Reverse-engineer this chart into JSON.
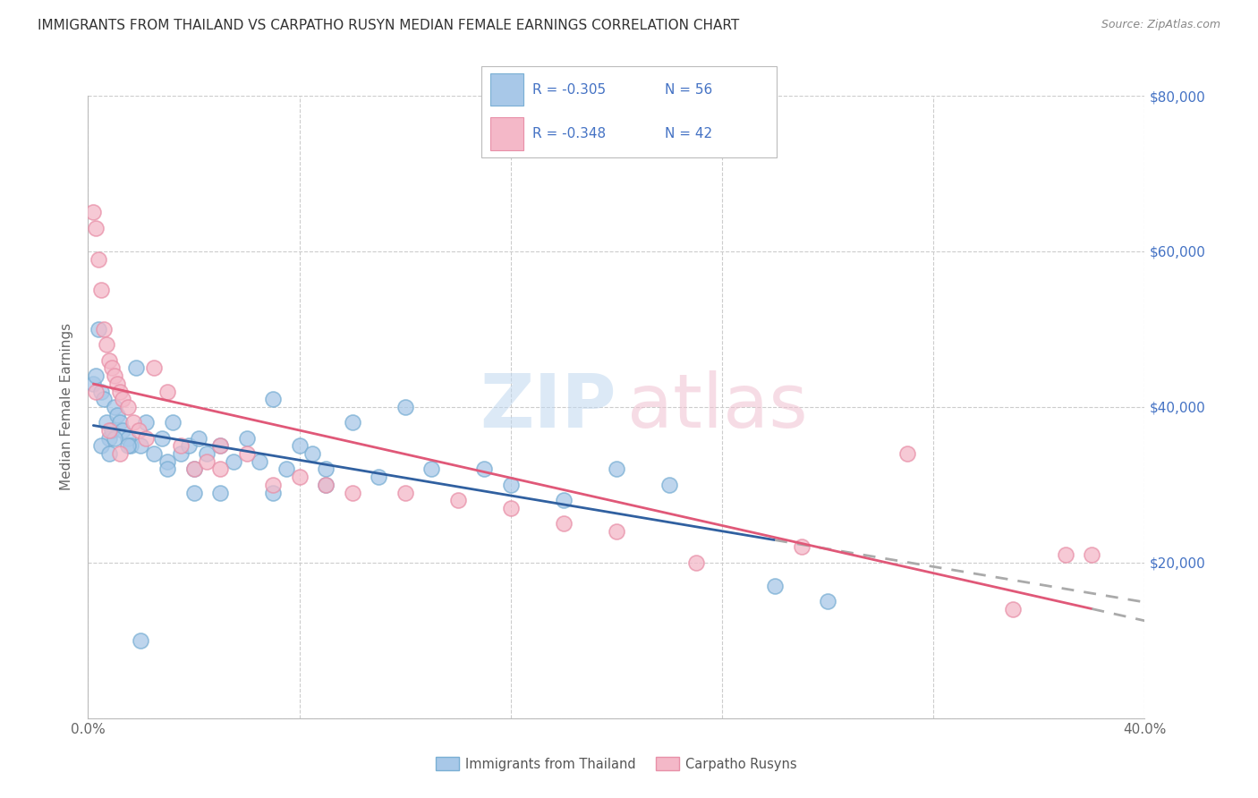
{
  "title": "IMMIGRANTS FROM THAILAND VS CARPATHO RUSYN MEDIAN FEMALE EARNINGS CORRELATION CHART",
  "source": "Source: ZipAtlas.com",
  "ylabel": "Median Female Earnings",
  "series1_label": "Immigrants from Thailand",
  "series2_label": "Carpatho Rusyns",
  "blue_color": "#a8c8e8",
  "blue_edge_color": "#7aafd4",
  "pink_color": "#f4b8c8",
  "pink_edge_color": "#e890a8",
  "blue_line_color": "#3060a0",
  "pink_line_color": "#e05878",
  "dashed_color": "#aaaaaa",
  "right_axis_color": "#4472c4",
  "legend_color": "#4472c4",
  "title_color": "#333333",
  "source_color": "#888888",
  "thailand_x": [
    0.2,
    0.3,
    0.4,
    0.5,
    0.6,
    0.7,
    0.8,
    0.9,
    1.0,
    1.1,
    1.2,
    1.3,
    1.5,
    1.6,
    1.8,
    2.0,
    2.2,
    2.5,
    2.8,
    3.0,
    3.2,
    3.5,
    3.8,
    4.0,
    4.2,
    4.5,
    5.0,
    5.5,
    6.0,
    6.5,
    7.0,
    7.5,
    8.0,
    8.5,
    9.0,
    10.0,
    11.0,
    12.0,
    13.0,
    15.0,
    16.0,
    18.0,
    20.0,
    22.0,
    26.0,
    28.0,
    0.5,
    0.8,
    1.0,
    1.5,
    2.0,
    3.0,
    4.0,
    5.0,
    7.0,
    9.0
  ],
  "thailand_y": [
    43000,
    44000,
    50000,
    42000,
    41000,
    38000,
    36000,
    37000,
    40000,
    39000,
    38000,
    37000,
    36000,
    35000,
    45000,
    35000,
    38000,
    34000,
    36000,
    33000,
    38000,
    34000,
    35000,
    32000,
    36000,
    34000,
    35000,
    33000,
    36000,
    33000,
    41000,
    32000,
    35000,
    34000,
    32000,
    38000,
    31000,
    40000,
    32000,
    32000,
    30000,
    28000,
    32000,
    30000,
    17000,
    15000,
    35000,
    34000,
    36000,
    35000,
    10000,
    32000,
    29000,
    29000,
    29000,
    30000
  ],
  "rusyn_x": [
    0.2,
    0.3,
    0.4,
    0.5,
    0.6,
    0.7,
    0.8,
    0.9,
    1.0,
    1.1,
    1.2,
    1.3,
    1.5,
    1.7,
    1.9,
    2.2,
    2.5,
    3.0,
    3.5,
    4.0,
    4.5,
    5.0,
    6.0,
    7.0,
    8.0,
    9.0,
    10.0,
    12.0,
    14.0,
    16.0,
    18.0,
    20.0,
    23.0,
    27.0,
    31.0,
    35.0,
    38.0,
    0.3,
    0.8,
    1.2,
    5.0,
    37.0
  ],
  "rusyn_y": [
    65000,
    63000,
    59000,
    55000,
    50000,
    48000,
    46000,
    45000,
    44000,
    43000,
    42000,
    41000,
    40000,
    38000,
    37000,
    36000,
    45000,
    42000,
    35000,
    32000,
    33000,
    32000,
    34000,
    30000,
    31000,
    30000,
    29000,
    29000,
    28000,
    27000,
    25000,
    24000,
    20000,
    22000,
    34000,
    14000,
    21000,
    42000,
    37000,
    34000,
    35000,
    21000
  ],
  "xlim": [
    0,
    40
  ],
  "ylim": [
    0,
    80000
  ],
  "xticks": [
    0,
    8,
    16,
    24,
    32,
    40
  ],
  "xticklabels": [
    "0.0%",
    "",
    "",
    "",
    "",
    "40.0%"
  ],
  "yticks": [
    0,
    20000,
    40000,
    60000,
    80000
  ],
  "yticklabels_right": [
    "",
    "$20,000",
    "$40,000",
    "$60,000",
    "$80,000"
  ],
  "blue_solid_end": 26.0,
  "pink_solid_end": 38.0
}
